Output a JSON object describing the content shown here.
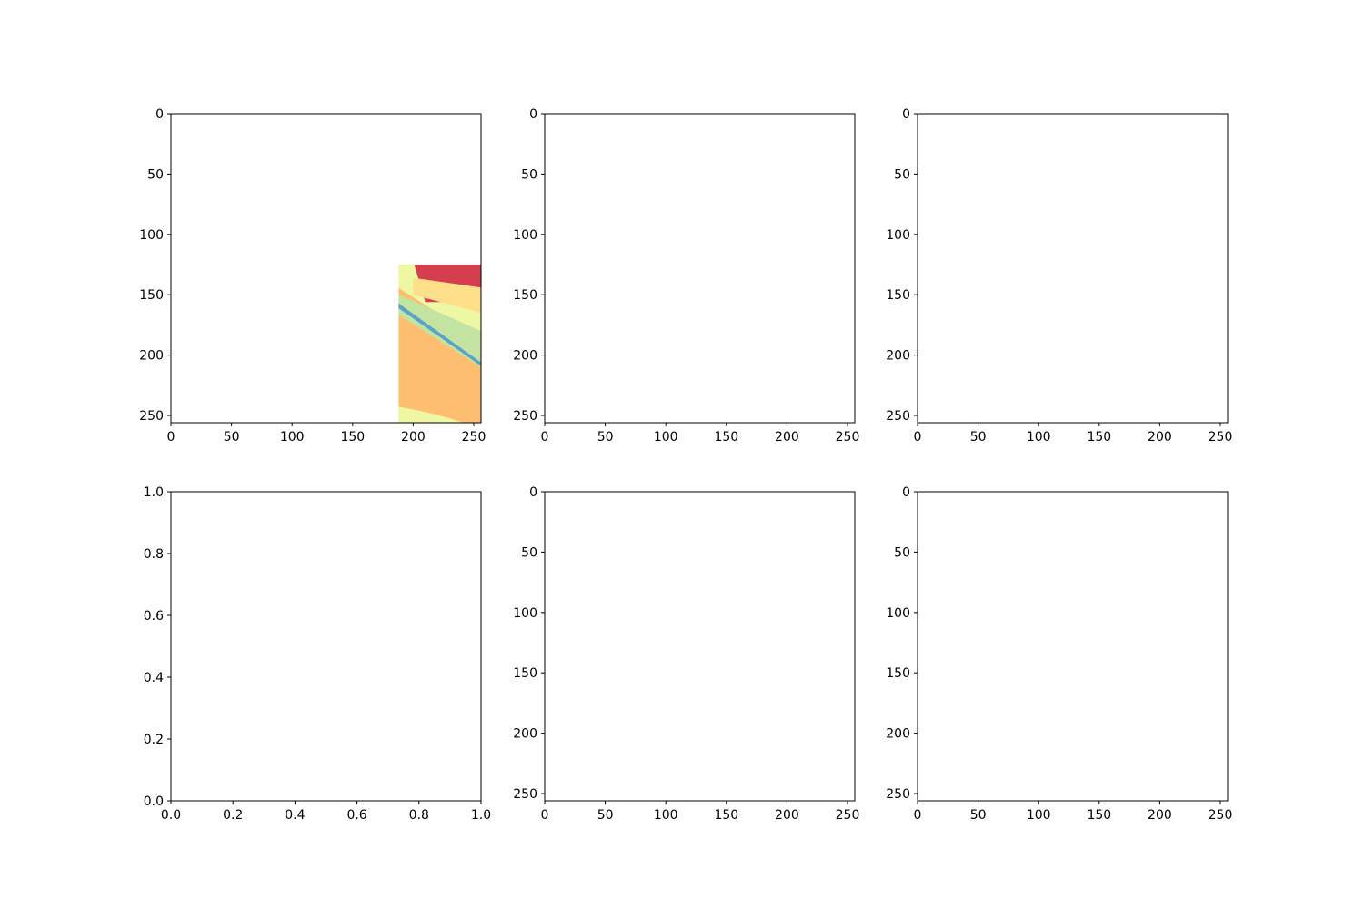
{
  "figure": {
    "layout": "2x3 grid of subplots",
    "background": "#ffffff"
  },
  "chart_data": [
    {
      "type": "heatmap",
      "position": "row 1, column 1",
      "colormap": "Spectral",
      "colors": {
        "sky": "#9e0142",
        "building": "#d53e4f",
        "pole": "#fdae61",
        "road": "#fdbf6f",
        "vegetation": "#eef7a3",
        "sidewalk": "#c2e3a2",
        "pedestrian": "#3288bd",
        "fence": "#fee08b",
        "edge": "#5aa2c8"
      },
      "x_ticks": [
        "0",
        "50",
        "100",
        "150",
        "200",
        "250"
      ],
      "y_ticks": [
        "0",
        "50",
        "100",
        "150",
        "200",
        "250"
      ],
      "xlim": [
        0,
        256
      ],
      "ylim": [
        256,
        0
      ],
      "grid": false
    },
    {
      "type": "heatmap",
      "position": "row 1, column 2",
      "colormap": "RdYlGn",
      "colors": {
        "sky": "#a50026",
        "building": "#d73027",
        "pole": "#fdae61",
        "road": "#fdbf6f",
        "vegetation": "#eef7a3",
        "sidewalk": "#b8e07a",
        "pedestrian": "#1f9a50",
        "fence": "#fee08b",
        "edge": "#1f7a40"
      },
      "x_ticks": [
        "0",
        "50",
        "100",
        "150",
        "200",
        "250"
      ],
      "y_ticks": [
        "0",
        "50",
        "100",
        "150",
        "200",
        "250"
      ],
      "xlim": [
        0,
        256
      ],
      "ylim": [
        256,
        0
      ],
      "grid": false
    },
    {
      "type": "heatmap",
      "position": "row 1, column 3",
      "colormap": "gist_rainbow",
      "colors": {
        "sky": "#ff0000",
        "building": "#ffa500",
        "pole": "#11ee55",
        "road": "#00ff00",
        "vegetation": "#00b4ff",
        "sidewalk": "#0010ff",
        "pedestrian": "#ff10c8",
        "fence": "#00ffa0",
        "edge": "#ff1090"
      },
      "x_ticks": [
        "0",
        "50",
        "100",
        "150",
        "200",
        "250"
      ],
      "y_ticks": [
        "0",
        "50",
        "100",
        "150",
        "200",
        "250"
      ],
      "xlim": [
        0,
        256
      ],
      "ylim": [
        256,
        0
      ],
      "grid": false
    },
    {
      "type": "empty",
      "position": "row 2, column 1",
      "x_ticks": [
        "0.0",
        "0.2",
        "0.4",
        "0.6",
        "0.8",
        "1.0"
      ],
      "y_ticks": [
        "0.0",
        "0.2",
        "0.4",
        "0.6",
        "0.8",
        "1.0"
      ],
      "xlim": [
        0,
        1
      ],
      "ylim": [
        0,
        1
      ],
      "grid": false
    },
    {
      "type": "heatmap",
      "position": "row 2, column 2",
      "colormap": "rainbow",
      "colors": {
        "sky": "#7f00ff",
        "building": "#4361f0",
        "pole": "#4fd8e8",
        "road": "#2adddd",
        "vegetation": "#a0f599",
        "sidewalk": "#d4dc7f",
        "pedestrian": "#ff5630",
        "fence": "#7ef5c0",
        "edge": "#e02a10"
      },
      "x_ticks": [
        "0",
        "50",
        "100",
        "150",
        "200",
        "250"
      ],
      "y_ticks": [
        "0",
        "50",
        "100",
        "150",
        "200",
        "250"
      ],
      "xlim": [
        0,
        256
      ],
      "ylim": [
        256,
        0
      ],
      "grid": false
    },
    {
      "type": "heatmap",
      "position": "row 2, column 3",
      "colormap": "rainbow",
      "colors": {
        "sky": "#7f00ff",
        "building": "#4361f0",
        "pole": "#4361f0",
        "road": "#40ecd4",
        "vegetation": "#c1eb8a",
        "sidewalk": "#ffad60",
        "pedestrian": "#ff0000",
        "fence": "#40ecd4",
        "edge": "#ff5a30"
      },
      "x_ticks": [
        "0",
        "50",
        "100",
        "150",
        "200",
        "250"
      ],
      "y_ticks": [
        "0",
        "50",
        "100",
        "150",
        "200",
        "250"
      ],
      "xlim": [
        0,
        256
      ],
      "ylim": [
        256,
        0
      ],
      "grid": false
    }
  ]
}
